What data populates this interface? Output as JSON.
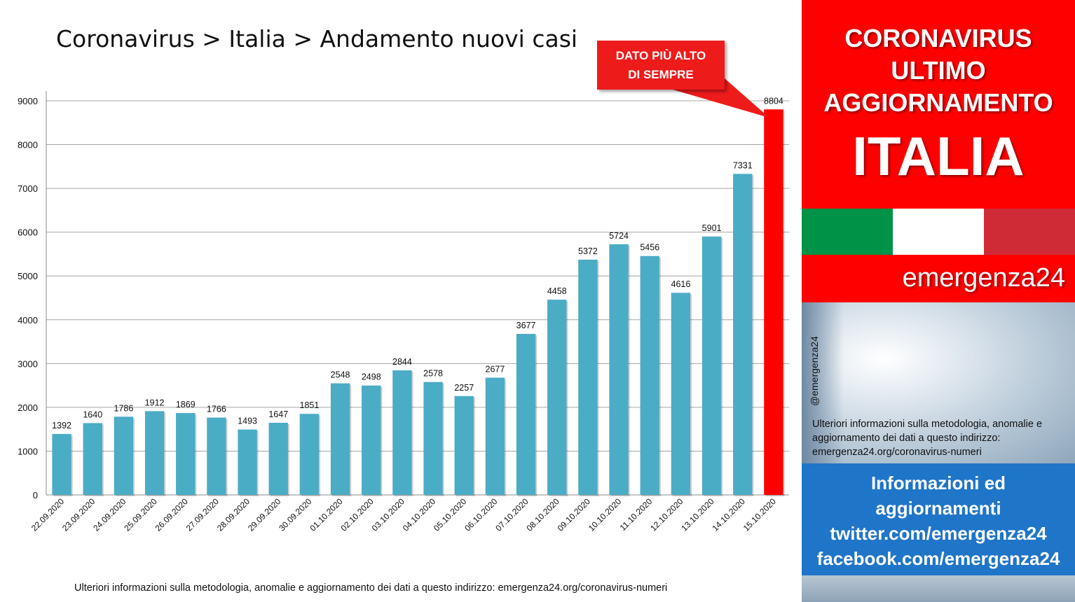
{
  "header": {
    "title": "Coronavirus > Italia > Andamento nuovi casi"
  },
  "callout": {
    "line1": "DATO PIÙ ALTO",
    "line2": "DI SEMPRE"
  },
  "footnote": "Ulteriori informazioni sulla metodologia, anomalie e aggiornamento dei dati a questo indirizzo: emergenza24.org/coronavirus-numeri",
  "panel": {
    "line1": "CORONAVIRUS",
    "line2": "ULTIMO",
    "line3": "AGGIORNAMENTO",
    "country": "ITALIA",
    "brand": "emergenza24",
    "handle": "@emergenza24",
    "info": "Ulteriori informazioni sulla metodologia, anomalie e aggiornamento dei dati a questo indirizzo: emergenza24.org/coronavirus-numeri",
    "social_1": "Informazioni ed",
    "social_2": "aggiornamenti",
    "social_3": "twitter.com/emergenza24",
    "social_4": "facebook.com/emergenza24"
  },
  "colors": {
    "bar": "#4bacc6",
    "highlight": "#ff0000",
    "panel_red": "#fe0000",
    "panel_blue": "#1f75c8",
    "flag_green": "#009246",
    "flag_white": "#ffffff",
    "flag_red": "#ce2b37"
  },
  "chart_data": {
    "type": "bar",
    "categories": [
      "22.09.2020",
      "23.09.2020",
      "24.09.2020",
      "25.09.2020",
      "26.09.2020",
      "27.09.2020",
      "28.09.2020",
      "29.09.2020",
      "30.09.2020",
      "01.10.2020",
      "02.10.2020",
      "03.10.2020",
      "04.10.2020",
      "05.10.2020",
      "06.10.2020",
      "07.10.2020",
      "08.10.2020",
      "09.10.2020",
      "10.10.2020",
      "11.10.2020",
      "12.10.2020",
      "13.10.2020",
      "14.10.2020",
      "15.10.2020"
    ],
    "values": [
      1392,
      1640,
      1786,
      1912,
      1869,
      1766,
      1493,
      1647,
      1851,
      2548,
      2498,
      2844,
      2578,
      2257,
      2677,
      3677,
      4458,
      5372,
      5724,
      5456,
      4616,
      5901,
      7331,
      8804
    ],
    "ylim": [
      0,
      9000
    ],
    "yticks": [
      0,
      1000,
      2000,
      3000,
      4000,
      5000,
      6000,
      7000,
      8000,
      9000
    ],
    "grid": true,
    "highlight_index": 23
  }
}
